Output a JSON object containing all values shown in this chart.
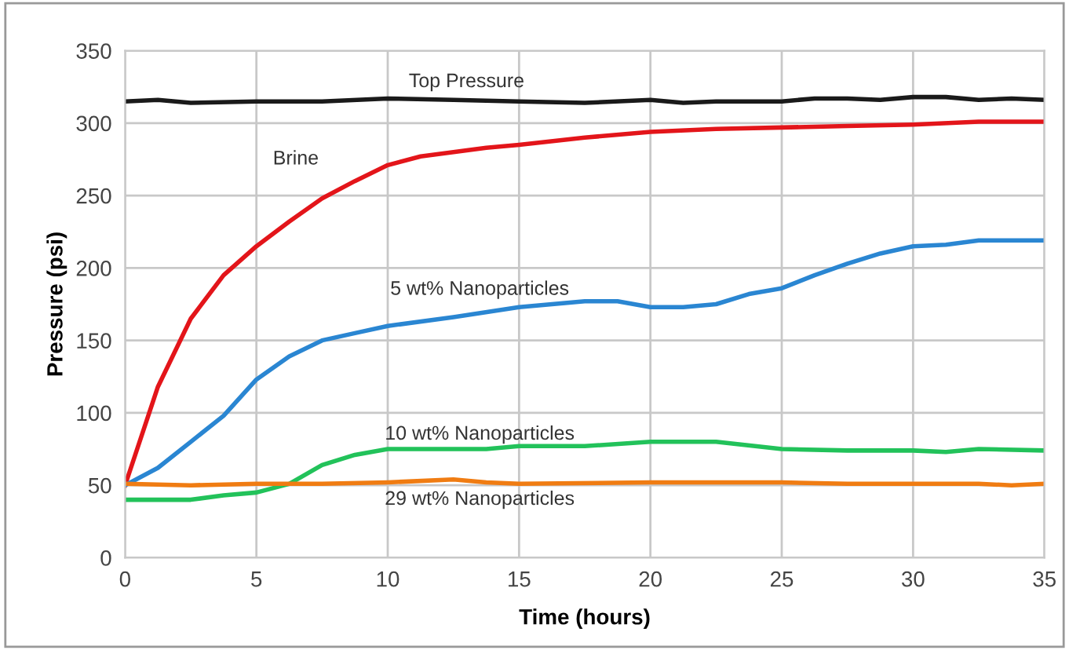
{
  "chart_data": {
    "type": "line",
    "xlabel": "Time (hours)",
    "ylabel": "Pressure (psi)",
    "xlim": [
      0,
      35
    ],
    "ylim": [
      0,
      350
    ],
    "xticks": [
      0,
      5,
      10,
      15,
      20,
      25,
      30,
      35
    ],
    "yticks": [
      0,
      50,
      100,
      150,
      200,
      250,
      300,
      350
    ],
    "grid": true,
    "legend": false,
    "marker": "none",
    "line_style": "solid",
    "series": [
      {
        "name": "Top Pressure",
        "color": "#1a1a1a",
        "x": [
          0,
          1.25,
          2.5,
          5,
          7.5,
          10,
          12.5,
          15,
          17.5,
          20,
          21.25,
          22.5,
          25,
          26.25,
          27.5,
          28.75,
          30,
          31.25,
          32.5,
          33.75,
          35
        ],
        "values": [
          315,
          316,
          314,
          315,
          315,
          317,
          316,
          315,
          314,
          316,
          314,
          315,
          315,
          317,
          317,
          316,
          318,
          318,
          316,
          317,
          316
        ]
      },
      {
        "name": "Brine",
        "color": "#e3151a",
        "x": [
          0,
          1.25,
          2.5,
          3.75,
          5,
          6.25,
          7.5,
          8.75,
          10,
          11.25,
          12.5,
          13.75,
          15,
          17.5,
          20,
          22.5,
          25,
          27.5,
          30,
          32.5,
          35
        ],
        "values": [
          50,
          118,
          165,
          195,
          215,
          232,
          248,
          260,
          271,
          277,
          280,
          283,
          285,
          290,
          294,
          296,
          297,
          298,
          299,
          301,
          301
        ]
      },
      {
        "name": "5 wt% Nanoparticles",
        "color": "#2a86d2",
        "x": [
          0,
          1.25,
          2.5,
          3.75,
          5,
          6.25,
          7.5,
          8.75,
          10,
          12.5,
          15,
          17.5,
          18.75,
          20,
          21.25,
          22.5,
          23.75,
          25,
          26.25,
          27.5,
          28.75,
          30,
          31.25,
          32.5,
          35
        ],
        "values": [
          50,
          62,
          80,
          98,
          123,
          139,
          150,
          155,
          160,
          166,
          173,
          177,
          177,
          173,
          173,
          175,
          182,
          186,
          195,
          203,
          210,
          215,
          216,
          219,
          219
        ]
      },
      {
        "name": "10 wt% Nanoparticles",
        "color": "#22c25a",
        "x": [
          0,
          2.5,
          3.75,
          5,
          6.25,
          7.5,
          8.75,
          10,
          12.5,
          13.75,
          15,
          17.5,
          20,
          22.5,
          25,
          27.5,
          30,
          31.25,
          32.5,
          35
        ],
        "values": [
          40,
          40,
          43,
          45,
          51,
          64,
          71,
          75,
          75,
          75,
          77,
          77,
          80,
          80,
          75,
          74,
          74,
          73,
          75,
          74
        ]
      },
      {
        "name": "29 wt% Nanoparticles",
        "color": "#f07c12",
        "x": [
          0,
          2.5,
          5,
          7.5,
          10,
          12.5,
          13.75,
          15,
          20,
          25,
          27.5,
          32.5,
          33.75,
          35
        ],
        "values": [
          51,
          50,
          51,
          51,
          52,
          54,
          52,
          51,
          52,
          52,
          51,
          51,
          50,
          51
        ]
      }
    ]
  }
}
